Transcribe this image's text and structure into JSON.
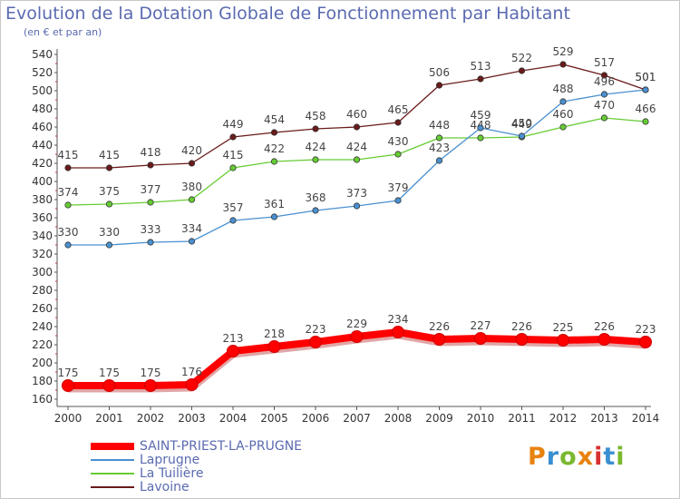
{
  "header": {
    "title": "Evolution de la Dotation Globale de Fonctionnement par Habitant",
    "subtitle": "(en € et par an)"
  },
  "logo": {
    "text": "Proxiti",
    "colors": [
      "#e8820f",
      "#3a8fd0",
      "#7ab82e",
      "#e8820f",
      "#d83030",
      "#3a8fd0",
      "#7ab82e"
    ]
  },
  "chart_data": {
    "type": "line",
    "title": "Evolution de la Dotation Globale de Fonctionnement par Habitant",
    "subtitle": "(en € et par an)",
    "xlabel": "",
    "ylabel": "",
    "x": [
      "2000",
      "2001",
      "2002",
      "2003",
      "2004",
      "2005",
      "2006",
      "2007",
      "2008",
      "2009",
      "2010",
      "2011",
      "2012",
      "2013",
      "2014"
    ],
    "ylim": [
      160,
      540
    ],
    "yticks": [
      160,
      180,
      200,
      220,
      240,
      260,
      280,
      300,
      320,
      340,
      360,
      380,
      400,
      420,
      440,
      460,
      480,
      500,
      520,
      540
    ],
    "grid": false,
    "legend_position": "bottom-left",
    "series": [
      {
        "name": "SAINT-PRIEST-LA-PRUGNE",
        "color": "#ff0000",
        "values": [
          175,
          175,
          175,
          176,
          213,
          218,
          223,
          229,
          234,
          226,
          227,
          226,
          225,
          226,
          223
        ]
      },
      {
        "name": "Laprugne",
        "color": "#4a90d0",
        "values": [
          330,
          330,
          333,
          334,
          357,
          361,
          368,
          373,
          379,
          423,
          459,
          450,
          488,
          496,
          501
        ]
      },
      {
        "name": "La Tuilière",
        "color": "#66cc33",
        "values": [
          374,
          375,
          377,
          380,
          415,
          422,
          424,
          424,
          430,
          448,
          448,
          449,
          460,
          470,
          466
        ]
      },
      {
        "name": "Lavoine",
        "color": "#6a1a1a",
        "values": [
          415,
          415,
          418,
          420,
          449,
          454,
          458,
          460,
          465,
          506,
          513,
          522,
          529,
          517,
          501
        ]
      }
    ]
  }
}
